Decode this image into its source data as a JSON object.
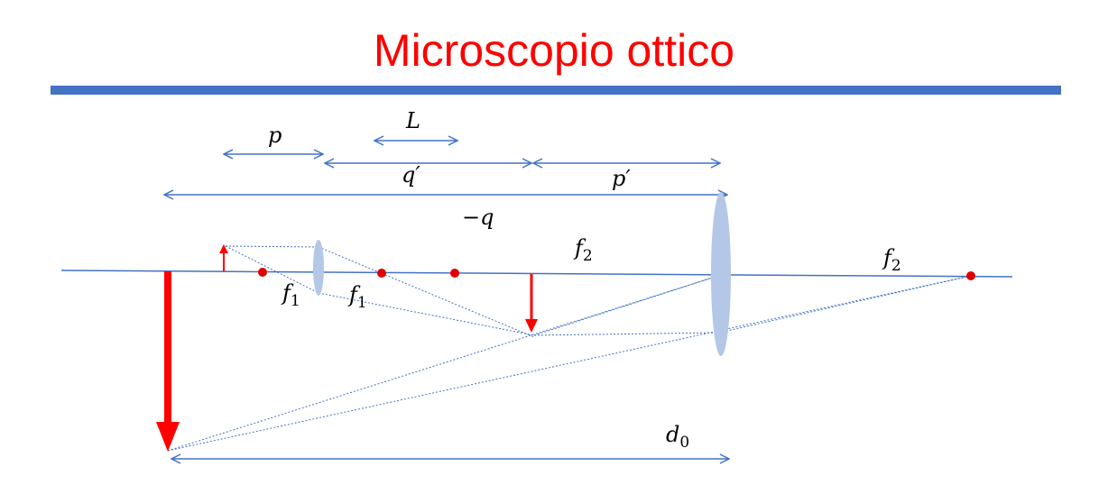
{
  "title": "Microscopio ottico",
  "colors": {
    "title": "#ff0000",
    "rule": "#4472c4",
    "axis": "#4472c4",
    "lens": "#b4c7e7",
    "arrow": "#ff0000",
    "focus_point": "#e00000"
  },
  "labels": {
    "p": "p",
    "L": "L",
    "q_prime": "q′",
    "p_prime": "p′",
    "minus_q": "−q",
    "f1_left": "f",
    "f1_left_sub": "1",
    "f1_right": "f",
    "f1_right_sub": "1",
    "f2_mid": "f",
    "f2_mid_sub": "2",
    "f2_right": "f",
    "f2_right_sub": "2",
    "d0": "d",
    "d0_sub": "0"
  }
}
